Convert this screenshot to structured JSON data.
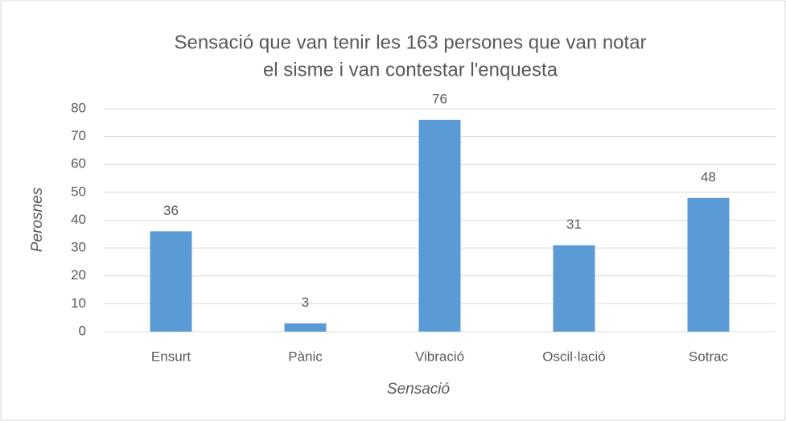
{
  "chart_data": {
    "type": "bar",
    "title": [
      "Sensació que van tenir les 163 persones que van notar",
      "el sisme i van contestar l'enquesta"
    ],
    "x_label": "Sensació",
    "y_label": "Perosnes",
    "categories": [
      "Ensurt",
      "Pànic",
      "Vibració",
      "Oscil·lació",
      "Sotrac"
    ],
    "values": [
      36,
      3,
      76,
      31,
      48
    ],
    "color": "#5b9bd5",
    "ylim": [
      0,
      80
    ],
    "yticks": [
      0,
      10,
      20,
      30,
      40,
      50,
      60,
      70,
      80
    ],
    "grid": true,
    "data_labels": true
  }
}
